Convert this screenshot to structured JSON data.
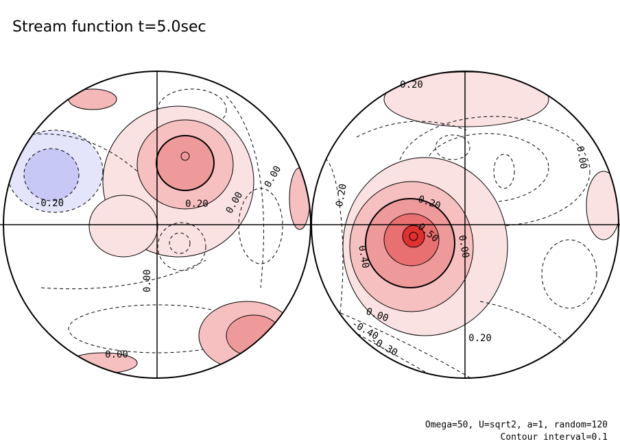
{
  "title": "Stream function t=5.0sec",
  "footnote": [
    "Omega=50, U=sqrt2, a=1, random=120",
    "Contour interval=0.1"
  ],
  "left_hemisphere": {
    "contour_labels": [
      "-0.20",
      "0.20",
      "0.00",
      "0.00",
      "0.00",
      "0.00"
    ]
  },
  "right_hemisphere": {
    "contour_labels": [
      "0.20",
      "0.00",
      "0.20",
      "0.20",
      "0.40",
      "0.50",
      "0.00",
      "0.00",
      "-0.40",
      "-0.30",
      "0.20"
    ]
  }
}
